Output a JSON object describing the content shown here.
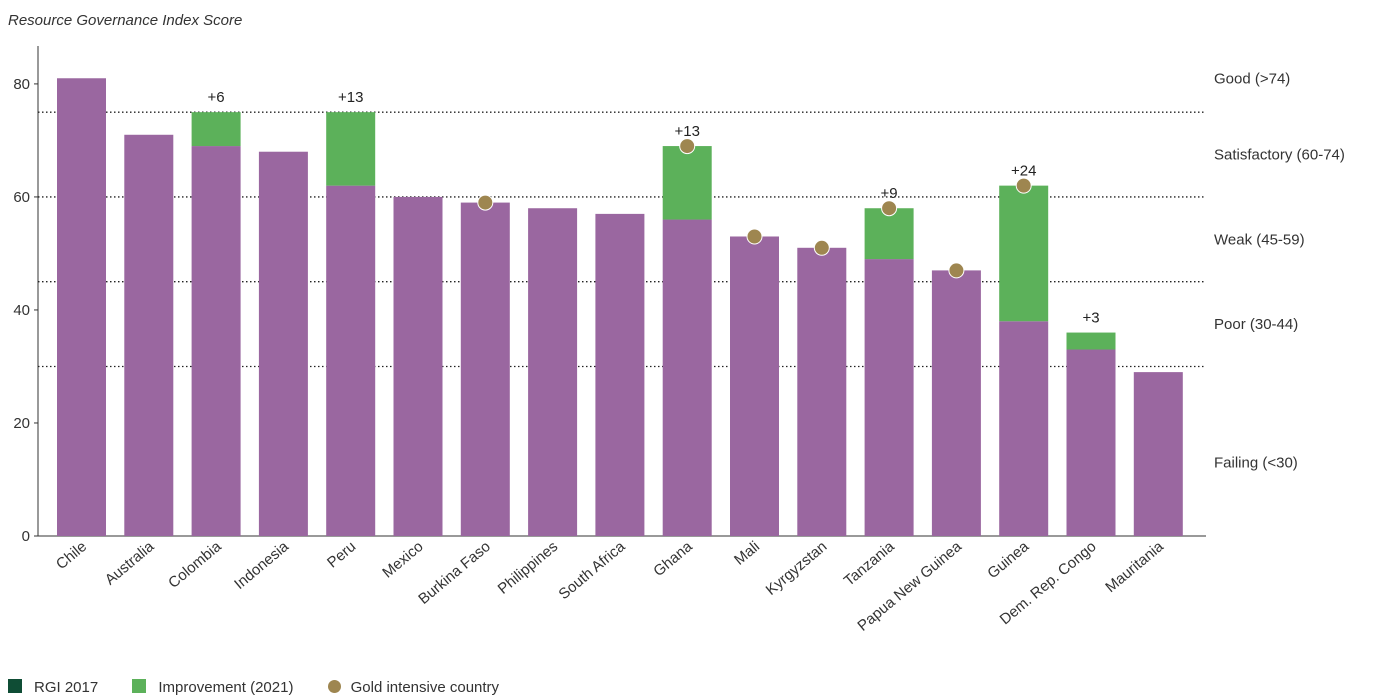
{
  "chart_data": {
    "type": "bar",
    "title": "Resource Governance Index Score",
    "ylim": [
      0,
      86
    ],
    "yticks": [
      0,
      20,
      40,
      60,
      80
    ],
    "categories": [
      "Chile",
      "Australia",
      "Colombia",
      "Indonesia",
      "Peru",
      "Mexico",
      "Burkina Faso",
      "Philippines",
      "South Africa",
      "Ghana",
      "Mali",
      "Kyrgyzstan",
      "Tanzania",
      "Papua New Guinea",
      "Guinea",
      "Dem. Rep. Congo",
      "Mauritania"
    ],
    "series": [
      {
        "name": "RGI 2017",
        "values": [
          81,
          71,
          69,
          68,
          62,
          60,
          59,
          58,
          57,
          56,
          53,
          51,
          49,
          47,
          38,
          33,
          29
        ]
      },
      {
        "name": "Improvement (2021)",
        "values": [
          0,
          0,
          6,
          0,
          13,
          0,
          0,
          0,
          0,
          13,
          0,
          0,
          9,
          0,
          24,
          3,
          0
        ]
      }
    ],
    "annotations": [
      "",
      "",
      "+6",
      "",
      "+13",
      "",
      "",
      "",
      "",
      "+13",
      "",
      "",
      "+9",
      "",
      "+24",
      "+3",
      ""
    ],
    "gold_intensive": [
      false,
      false,
      false,
      false,
      false,
      false,
      true,
      false,
      false,
      true,
      true,
      true,
      true,
      true,
      true,
      false,
      false
    ],
    "gold_intensive_label": "Gold intensive country",
    "thresholds": [
      75,
      60,
      45,
      30
    ],
    "bands": [
      {
        "label": "Good (>74)",
        "center": 81
      },
      {
        "label": "Satisfactory (60-74)",
        "center": 67.5
      },
      {
        "label": "Weak (45-59)",
        "center": 52.5
      },
      {
        "label": "Poor (30-44)",
        "center": 37.5
      },
      {
        "label": "Failing (<30)",
        "center": 13
      }
    ],
    "colors": {
      "base": "#9a67a0",
      "improvement": "#5cb15a",
      "gold": "#9e8650",
      "legend_base": "#0f4d35"
    },
    "legend": [
      "RGI 2017",
      "Improvement (2021)",
      "Gold intensive country"
    ]
  }
}
